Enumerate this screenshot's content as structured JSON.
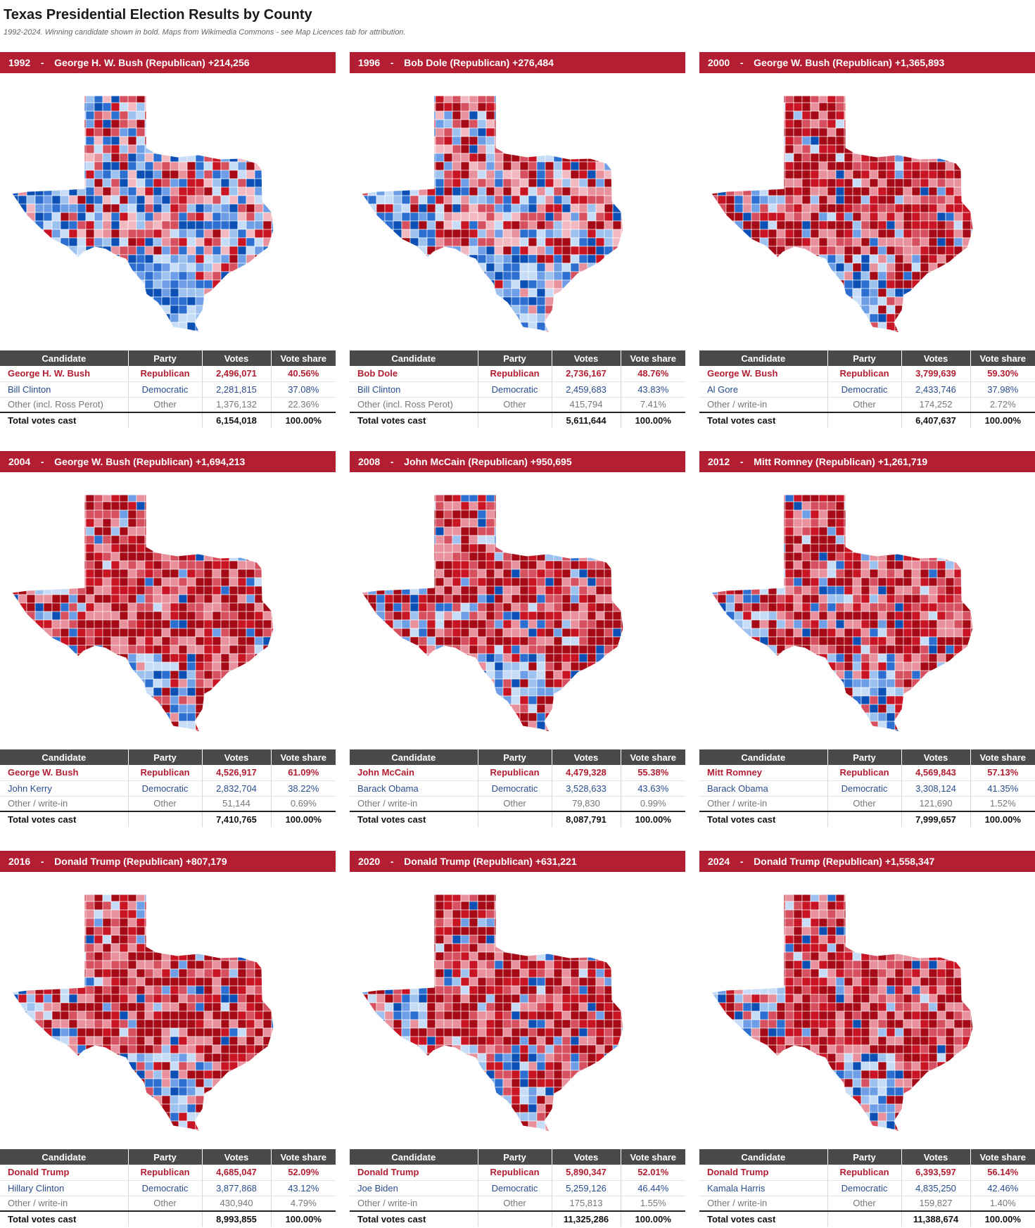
{
  "page": {
    "title": "Texas Presidential Election Results by County",
    "subtitle": "1992-2024. Winning candidate shown in bold. Maps from Wikimedia Commons - see Map Licences tab for attribution."
  },
  "colors": {
    "header_red": "#b31e32",
    "table_header": "#4a4a4a",
    "republican_text": "#b31e32",
    "democratic_text": "#2a4d8f",
    "other_text": "#777777"
  },
  "columns": [
    "Candidate",
    "Party",
    "Votes",
    "Vote share"
  ],
  "elections": [
    {
      "year": "1992",
      "winner": "George H. W. Bush (Republican) +214,256",
      "map_icon": "texas-county-map-1992",
      "rows": [
        {
          "candidate": "George H. W. Bush",
          "party": "Republican",
          "votes": "2,496,071",
          "share": "40.56%"
        },
        {
          "candidate": "Bill Clinton",
          "party": "Democratic",
          "votes": "2,281,815",
          "share": "37.08%"
        },
        {
          "candidate": "Other (incl. Ross Perot)",
          "party": "Other",
          "votes": "1,376,132",
          "share": "22.36%"
        },
        {
          "candidate": "Total votes cast",
          "party": "",
          "votes": "6,154,018",
          "share": "100.00%"
        }
      ]
    },
    {
      "year": "1996",
      "winner": "Bob Dole (Republican) +276,484",
      "map_icon": "texas-county-map-1996",
      "rows": [
        {
          "candidate": "Bob Dole",
          "party": "Republican",
          "votes": "2,736,167",
          "share": "48.76%"
        },
        {
          "candidate": "Bill Clinton",
          "party": "Democratic",
          "votes": "2,459,683",
          "share": "43.83%"
        },
        {
          "candidate": "Other (incl. Ross Perot)",
          "party": "Other",
          "votes": "415,794",
          "share": "7.41%"
        },
        {
          "candidate": "Total votes cast",
          "party": "",
          "votes": "5,611,644",
          "share": "100.00%"
        }
      ]
    },
    {
      "year": "2000",
      "winner": "George W. Bush (Republican) +1,365,893",
      "map_icon": "texas-county-map-2000",
      "rows": [
        {
          "candidate": "George W. Bush",
          "party": "Republican",
          "votes": "3,799,639",
          "share": "59.30%"
        },
        {
          "candidate": "Al Gore",
          "party": "Democratic",
          "votes": "2,433,746",
          "share": "37.98%"
        },
        {
          "candidate": "Other / write-in",
          "party": "Other",
          "votes": "174,252",
          "share": "2.72%"
        },
        {
          "candidate": "Total votes cast",
          "party": "",
          "votes": "6,407,637",
          "share": "100.00%"
        }
      ]
    },
    {
      "year": "2004",
      "winner": "George W. Bush (Republican) +1,694,213",
      "map_icon": "texas-county-map-2004",
      "rows": [
        {
          "candidate": "George W. Bush",
          "party": "Republican",
          "votes": "4,526,917",
          "share": "61.09%"
        },
        {
          "candidate": "John Kerry",
          "party": "Democratic",
          "votes": "2,832,704",
          "share": "38.22%"
        },
        {
          "candidate": "Other / write-in",
          "party": "Other",
          "votes": "51,144",
          "share": "0.69%"
        },
        {
          "candidate": "Total votes cast",
          "party": "",
          "votes": "7,410,765",
          "share": "100.00%"
        }
      ]
    },
    {
      "year": "2008",
      "winner": "John McCain (Republican) +950,695",
      "map_icon": "texas-county-map-2008",
      "rows": [
        {
          "candidate": "John McCain",
          "party": "Republican",
          "votes": "4,479,328",
          "share": "55.38%"
        },
        {
          "candidate": "Barack Obama",
          "party": "Democratic",
          "votes": "3,528,633",
          "share": "43.63%"
        },
        {
          "candidate": "Other / write-in",
          "party": "Other",
          "votes": "79,830",
          "share": "0.99%"
        },
        {
          "candidate": "Total votes cast",
          "party": "",
          "votes": "8,087,791",
          "share": "100.00%"
        }
      ]
    },
    {
      "year": "2012",
      "winner": "Mitt Romney (Republican) +1,261,719",
      "map_icon": "texas-county-map-2012",
      "rows": [
        {
          "candidate": "Mitt Romney",
          "party": "Republican",
          "votes": "4,569,843",
          "share": "57.13%"
        },
        {
          "candidate": "Barack Obama",
          "party": "Democratic",
          "votes": "3,308,124",
          "share": "41.35%"
        },
        {
          "candidate": "Other / write-in",
          "party": "Other",
          "votes": "121,690",
          "share": "1.52%"
        },
        {
          "candidate": "Total votes cast",
          "party": "",
          "votes": "7,999,657",
          "share": "100.00%"
        }
      ]
    },
    {
      "year": "2016",
      "winner": "Donald Trump (Republican) +807,179",
      "map_icon": "texas-county-map-2016",
      "rows": [
        {
          "candidate": "Donald Trump",
          "party": "Republican",
          "votes": "4,685,047",
          "share": "52.09%"
        },
        {
          "candidate": "Hillary Clinton",
          "party": "Democratic",
          "votes": "3,877,868",
          "share": "43.12%"
        },
        {
          "candidate": "Other / write-in",
          "party": "Other",
          "votes": "430,940",
          "share": "4.79%"
        },
        {
          "candidate": "Total votes cast",
          "party": "",
          "votes": "8,993,855",
          "share": "100.00%"
        }
      ]
    },
    {
      "year": "2020",
      "winner": "Donald Trump (Republican) +631,221",
      "map_icon": "texas-county-map-2020",
      "rows": [
        {
          "candidate": "Donald Trump",
          "party": "Republican",
          "votes": "5,890,347",
          "share": "52.01%"
        },
        {
          "candidate": "Joe Biden",
          "party": "Democratic",
          "votes": "5,259,126",
          "share": "46.44%"
        },
        {
          "candidate": "Other / write-in",
          "party": "Other",
          "votes": "175,813",
          "share": "1.55%"
        },
        {
          "candidate": "Total votes cast",
          "party": "",
          "votes": "11,325,286",
          "share": "100.00%"
        }
      ]
    },
    {
      "year": "2024",
      "winner": "Donald Trump (Republican) +1,558,347",
      "map_icon": "texas-county-map-2024",
      "rows": [
        {
          "candidate": "Donald Trump",
          "party": "Republican",
          "votes": "6,393,597",
          "share": "56.14%"
        },
        {
          "candidate": "Kamala Harris",
          "party": "Democratic",
          "votes": "4,835,250",
          "share": "42.46%"
        },
        {
          "candidate": "Other / write-in",
          "party": "Other",
          "votes": "159,827",
          "share": "1.40%"
        },
        {
          "candidate": "Total votes cast",
          "party": "",
          "votes": "11,388,674",
          "share": "100.00%"
        }
      ]
    }
  ]
}
